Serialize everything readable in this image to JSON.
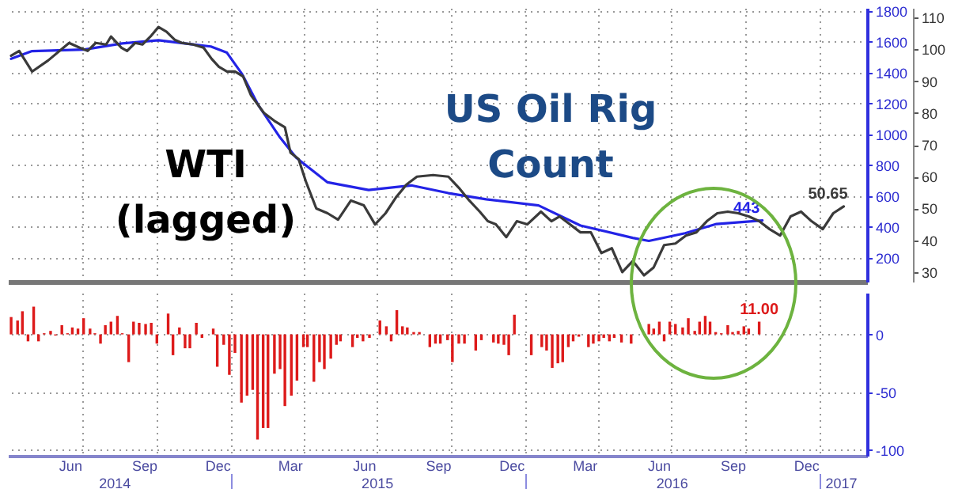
{
  "chart_data": [
    {
      "type": "line",
      "xlim": [
        "2014-03-30",
        "2017-03-01"
      ],
      "xticks": [
        {
          "value": "2014-07-01",
          "label": null
        },
        {
          "value": "2014-10-01",
          "label": null
        },
        {
          "value": "2015-01-01",
          "label": null
        },
        {
          "value": "2015-04-01",
          "label": null
        },
        {
          "value": "2015-07-01",
          "label": null
        },
        {
          "value": "2015-10-01",
          "label": null
        },
        {
          "value": "2016-01-01",
          "label": null
        },
        {
          "value": "2016-04-01",
          "label": null
        },
        {
          "value": "2016-07-01",
          "label": null
        },
        {
          "value": "2016-10-01",
          "label": null
        },
        {
          "value": "2017-01-01",
          "label": null
        }
      ],
      "tick_labels": "y",
      "ylim": [
        46,
        1820
      ],
      "yticks": [
        200,
        400,
        600,
        800,
        1000,
        1200,
        1400,
        1600,
        1800
      ],
      "y2lim": [
        27,
        113
      ],
      "y2ticks": [
        30,
        40,
        50,
        60,
        70,
        80,
        90,
        100,
        110
      ],
      "grid": true,
      "series": [
        {
          "name": "US Oil Rig\nCount",
          "color": "#2323e6",
          "x": [
            "2014-04-03",
            "2014-04-29",
            "2014-07-03",
            "2014-08-19",
            "2014-10-03",
            "2014-12-07",
            "2014-12-27",
            "2015-01-15",
            "2015-02-04",
            "2015-03-03",
            "2015-03-23",
            "2015-05-01",
            "2015-06-21",
            "2015-08-13",
            "2015-09-28",
            "2015-11-14",
            "2016-01-18",
            "2016-03-10",
            "2016-05-14",
            "2016-06-03",
            "2016-07-18",
            "2016-08-26",
            "2016-10-22"
          ],
          "values": [
            1490,
            1540,
            1550,
            1590,
            1610,
            1570,
            1530,
            1390,
            1190,
            980,
            850,
            690,
            640,
            670,
            620,
            580,
            540,
            410,
            330,
            310,
            360,
            420,
            443
          ],
          "value_labels": [
            null,
            null,
            null,
            null,
            null,
            null,
            null,
            null,
            null,
            null,
            null,
            null,
            null,
            null,
            null,
            null,
            null,
            null,
            null,
            null,
            null,
            null,
            "443"
          ]
        },
        {
          "name": "WTI\n(lagged)",
          "color": "#3a3a3a",
          "axis": "y2",
          "x": [
            "2014-04-03",
            "2014-04-13",
            "2014-04-29",
            "2014-05-19",
            "2014-06-14",
            "2014-06-27",
            "2014-07-07",
            "2014-07-17",
            "2014-07-30",
            "2014-08-05",
            "2014-08-18",
            "2014-08-25",
            "2014-09-04",
            "2014-09-13",
            "2014-09-23",
            "2014-10-03",
            "2014-10-13",
            "2014-10-23",
            "2014-11-01",
            "2014-11-15",
            "2014-11-28",
            "2014-12-08",
            "2014-12-17",
            "2014-12-27",
            "2015-01-06",
            "2015-01-16",
            "2015-01-26",
            "2015-02-11",
            "2015-02-24",
            "2015-03-09",
            "2015-03-16",
            "2015-03-26",
            "2015-04-04",
            "2015-04-17",
            "2015-05-01",
            "2015-05-14",
            "2015-05-30",
            "2015-06-15",
            "2015-06-29",
            "2015-07-12",
            "2015-07-25",
            "2015-08-07",
            "2015-08-20",
            "2015-09-09",
            "2015-09-28",
            "2015-10-11",
            "2015-10-24",
            "2015-11-06",
            "2015-11-16",
            "2015-11-26",
            "2015-12-09",
            "2015-12-22",
            "2016-01-04",
            "2016-01-21",
            "2016-02-03",
            "2016-02-13",
            "2016-02-26",
            "2016-03-10",
            "2016-03-23",
            "2016-04-05",
            "2016-04-18",
            "2016-05-01",
            "2016-05-14",
            "2016-05-28",
            "2016-06-09",
            "2016-06-22",
            "2016-07-06",
            "2016-07-19",
            "2016-08-01",
            "2016-08-14",
            "2016-08-27",
            "2016-09-09",
            "2016-09-22",
            "2016-10-05",
            "2016-10-18",
            "2016-10-31",
            "2016-11-13",
            "2016-11-26",
            "2016-12-09",
            "2016-12-22",
            "2017-01-05",
            "2017-01-18",
            "2017-01-31"
          ],
          "values": [
            98,
            99.5,
            93,
            96.5,
            102,
            100.5,
            99.5,
            102,
            101.5,
            104,
            100.5,
            99.5,
            102,
            101.5,
            104,
            107,
            105.5,
            103,
            102,
            101.5,
            100.5,
            97,
            94.5,
            93,
            93,
            91.5,
            85.5,
            80,
            77.5,
            75.5,
            67.5,
            65.5,
            58.5,
            50,
            48.5,
            46.5,
            52.5,
            51,
            45,
            48.5,
            53.5,
            57.5,
            60,
            60.5,
            60,
            56.5,
            52.5,
            49,
            46,
            45,
            41,
            46,
            45,
            49,
            46,
            47.5,
            45,
            42.5,
            42.5,
            36,
            37.5,
            30,
            33.5,
            29,
            31.5,
            38.5,
            39,
            41.5,
            42.5,
            46,
            48.5,
            49,
            48.5,
            47.5,
            46,
            43.5,
            41.5,
            47.5,
            49,
            46,
            43.5,
            48.5,
            50.65
          ],
          "value_labels": [
            null,
            null,
            null,
            null,
            null,
            null,
            null,
            null,
            null,
            null,
            null,
            null,
            null,
            null,
            null,
            null,
            null,
            null,
            null,
            null,
            null,
            null,
            null,
            null,
            null,
            null,
            null,
            null,
            null,
            null,
            null,
            null,
            null,
            null,
            null,
            null,
            null,
            null,
            null,
            null,
            null,
            null,
            null,
            null,
            null,
            null,
            null,
            null,
            null,
            null,
            null,
            null,
            null,
            null,
            null,
            null,
            null,
            null,
            null,
            null,
            null,
            null,
            null,
            null,
            null,
            null,
            null,
            null,
            null,
            null,
            null,
            null,
            null,
            null,
            null,
            null,
            null,
            null,
            null,
            null,
            null,
            null,
            "50.65"
          ]
        }
      ]
    },
    {
      "type": "bar",
      "xlim": [
        "2014-03-30",
        "2017-03-01"
      ],
      "xticks": [
        {
          "value": "2014-06-15",
          "label": "Jun"
        },
        {
          "value": "2014-07-01",
          "label": null
        },
        {
          "value": "2014-09-15",
          "label": "Sep"
        },
        {
          "value": "2014-10-01",
          "label": null
        },
        {
          "value": "2014-12-15",
          "label": "Dec"
        },
        {
          "value": "2015-01-01",
          "label": null
        },
        {
          "value": "2015-03-15",
          "label": "Mar"
        },
        {
          "value": "2015-04-01",
          "label": null
        },
        {
          "value": "2015-06-15",
          "label": "Jun"
        },
        {
          "value": "2015-07-01",
          "label": null
        },
        {
          "value": "2015-09-15",
          "label": "Sep"
        },
        {
          "value": "2015-10-01",
          "label": null
        },
        {
          "value": "2015-12-15",
          "label": "Dec"
        },
        {
          "value": "2016-01-01",
          "label": null
        },
        {
          "value": "2016-03-15",
          "label": "Mar"
        },
        {
          "value": "2016-04-01",
          "label": null
        },
        {
          "value": "2016-06-15",
          "label": "Jun"
        },
        {
          "value": "2016-07-01",
          "label": null
        },
        {
          "value": "2016-09-15",
          "label": "Sep"
        },
        {
          "value": "2016-10-01",
          "label": null
        },
        {
          "value": "2016-12-15",
          "label": "Dec"
        },
        {
          "value": "2017-01-01",
          "label": null
        }
      ],
      "x2lim": [
        "2014-03-30",
        "2017-03-01"
      ],
      "x2ticks": [
        {
          "value": "2014-08-09",
          "label": "2014"
        },
        {
          "value": "2015-01-01",
          "label": null
        },
        {
          "value": "2015-07-01",
          "label": "2015"
        },
        {
          "value": "2016-01-01",
          "label": null
        },
        {
          "value": "2016-07-01",
          "label": "2016"
        },
        {
          "value": "2017-01-01",
          "label": null
        },
        {
          "value": "2017-01-27",
          "label": "2017"
        }
      ],
      "ylim": [
        -105,
        36
      ],
      "yticks": [
        0,
        -50,
        -100
      ],
      "grid": true,
      "color": "#dd1a1a",
      "x": [
        "2014-04-03",
        "2014-04-11",
        "2014-04-17",
        "2014-04-24",
        "2014-05-01",
        "2014-05-07",
        "2014-05-14",
        "2014-05-22",
        "2014-05-28",
        "2014-06-05",
        "2014-06-12",
        "2014-06-18",
        "2014-06-25",
        "2014-07-02",
        "2014-07-10",
        "2014-07-16",
        "2014-07-23",
        "2014-07-29",
        "2014-08-05",
        "2014-08-13",
        "2014-08-19",
        "2014-08-27",
        "2014-09-02",
        "2014-09-09",
        "2014-09-17",
        "2014-09-24",
        "2014-10-01",
        "2014-10-15",
        "2014-10-21",
        "2014-10-29",
        "2014-11-05",
        "2014-11-11",
        "2014-11-19",
        "2014-11-26",
        "2014-12-10",
        "2014-12-15",
        "2014-12-23",
        "2014-12-30",
        "2015-01-06",
        "2015-01-14",
        "2015-01-21",
        "2015-01-28",
        "2015-02-03",
        "2015-02-10",
        "2015-02-16",
        "2015-02-24",
        "2015-03-03",
        "2015-03-09",
        "2015-03-17",
        "2015-03-24",
        "2015-04-01",
        "2015-04-06",
        "2015-04-14",
        "2015-04-21",
        "2015-04-27",
        "2015-05-05",
        "2015-05-12",
        "2015-05-17",
        "2015-06-01",
        "2015-06-07",
        "2015-06-14",
        "2015-06-22",
        "2015-07-05",
        "2015-07-13",
        "2015-07-19",
        "2015-07-26",
        "2015-08-02",
        "2015-08-08",
        "2015-08-16",
        "2015-08-23",
        "2015-09-05",
        "2015-09-12",
        "2015-09-18",
        "2015-09-27",
        "2015-10-03",
        "2015-10-11",
        "2015-10-18",
        "2015-11-01",
        "2015-11-08",
        "2015-11-23",
        "2015-11-29",
        "2015-12-06",
        "2015-12-12",
        "2015-12-19",
        "2016-01-09",
        "2016-01-22",
        "2016-01-28",
        "2016-02-04",
        "2016-02-11",
        "2016-02-17",
        "2016-02-24",
        "2016-03-01",
        "2016-03-08",
        "2016-03-20",
        "2016-03-26",
        "2016-04-02",
        "2016-04-08",
        "2016-04-15",
        "2016-04-21",
        "2016-04-30",
        "2016-05-12",
        "2016-06-03",
        "2016-06-09",
        "2016-06-16",
        "2016-06-22",
        "2016-06-29",
        "2016-07-06",
        "2016-07-15",
        "2016-07-22",
        "2016-07-30",
        "2016-08-05",
        "2016-08-12",
        "2016-08-18",
        "2016-08-25",
        "2016-09-01",
        "2016-09-09",
        "2016-09-15",
        "2016-09-22",
        "2016-09-29",
        "2016-10-05",
        "2016-10-18"
      ],
      "values": [
        15,
        12,
        20,
        -6,
        24,
        -6,
        1,
        3,
        -1,
        8,
        1,
        6,
        5,
        14,
        5,
        1,
        -8,
        8,
        11,
        16,
        1,
        -24,
        11,
        10,
        9,
        10,
        -8,
        18,
        -18,
        6,
        -12,
        -12,
        10,
        -3,
        5,
        -28,
        -9,
        -35,
        -16,
        -59,
        -53,
        -48,
        -91,
        -81,
        -81,
        -34,
        -30,
        -62,
        -53,
        -40,
        -11,
        -11,
        -41,
        -24,
        -30,
        -21,
        -9,
        -6,
        -11,
        -3,
        -6,
        -3,
        12,
        7,
        -6,
        21,
        7,
        6,
        2,
        2,
        -11,
        -8,
        -8,
        -5,
        -24,
        -8,
        -8,
        -14,
        -5,
        -7,
        -8,
        -9,
        -18,
        17,
        -18,
        -11,
        -14,
        -29,
        -25,
        -24,
        -11,
        -6,
        -2,
        -11,
        -8,
        -6,
        -3,
        -6,
        -3,
        -7,
        -8,
        9,
        5,
        11,
        -6,
        11,
        9,
        6,
        14,
        3,
        11,
        16,
        11,
        2,
        1,
        8,
        2,
        3,
        7,
        5,
        11
      ],
      "value_labels": [
        null,
        null,
        null,
        null,
        null,
        null,
        null,
        null,
        null,
        null,
        null,
        null,
        null,
        null,
        null,
        null,
        null,
        null,
        null,
        null,
        null,
        null,
        null,
        null,
        null,
        null,
        null,
        null,
        null,
        null,
        null,
        null,
        null,
        null,
        null,
        null,
        null,
        null,
        null,
        null,
        null,
        null,
        null,
        null,
        null,
        null,
        null,
        null,
        null,
        null,
        null,
        null,
        null,
        null,
        null,
        null,
        null,
        null,
        null,
        null,
        null,
        null,
        null,
        null,
        null,
        null,
        null,
        null,
        null,
        null,
        null,
        null,
        null,
        null,
        null,
        null,
        null,
        null,
        null,
        null,
        null,
        null,
        null,
        null,
        null,
        null,
        null,
        null,
        null,
        null,
        null,
        null,
        null,
        null,
        null,
        null,
        null,
        null,
        null,
        null,
        null,
        null,
        null,
        null,
        null,
        null,
        null,
        null,
        null,
        null,
        null,
        null,
        null,
        null,
        null,
        null,
        null,
        null,
        null,
        null,
        "11.00"
      ]
    }
  ]
}
